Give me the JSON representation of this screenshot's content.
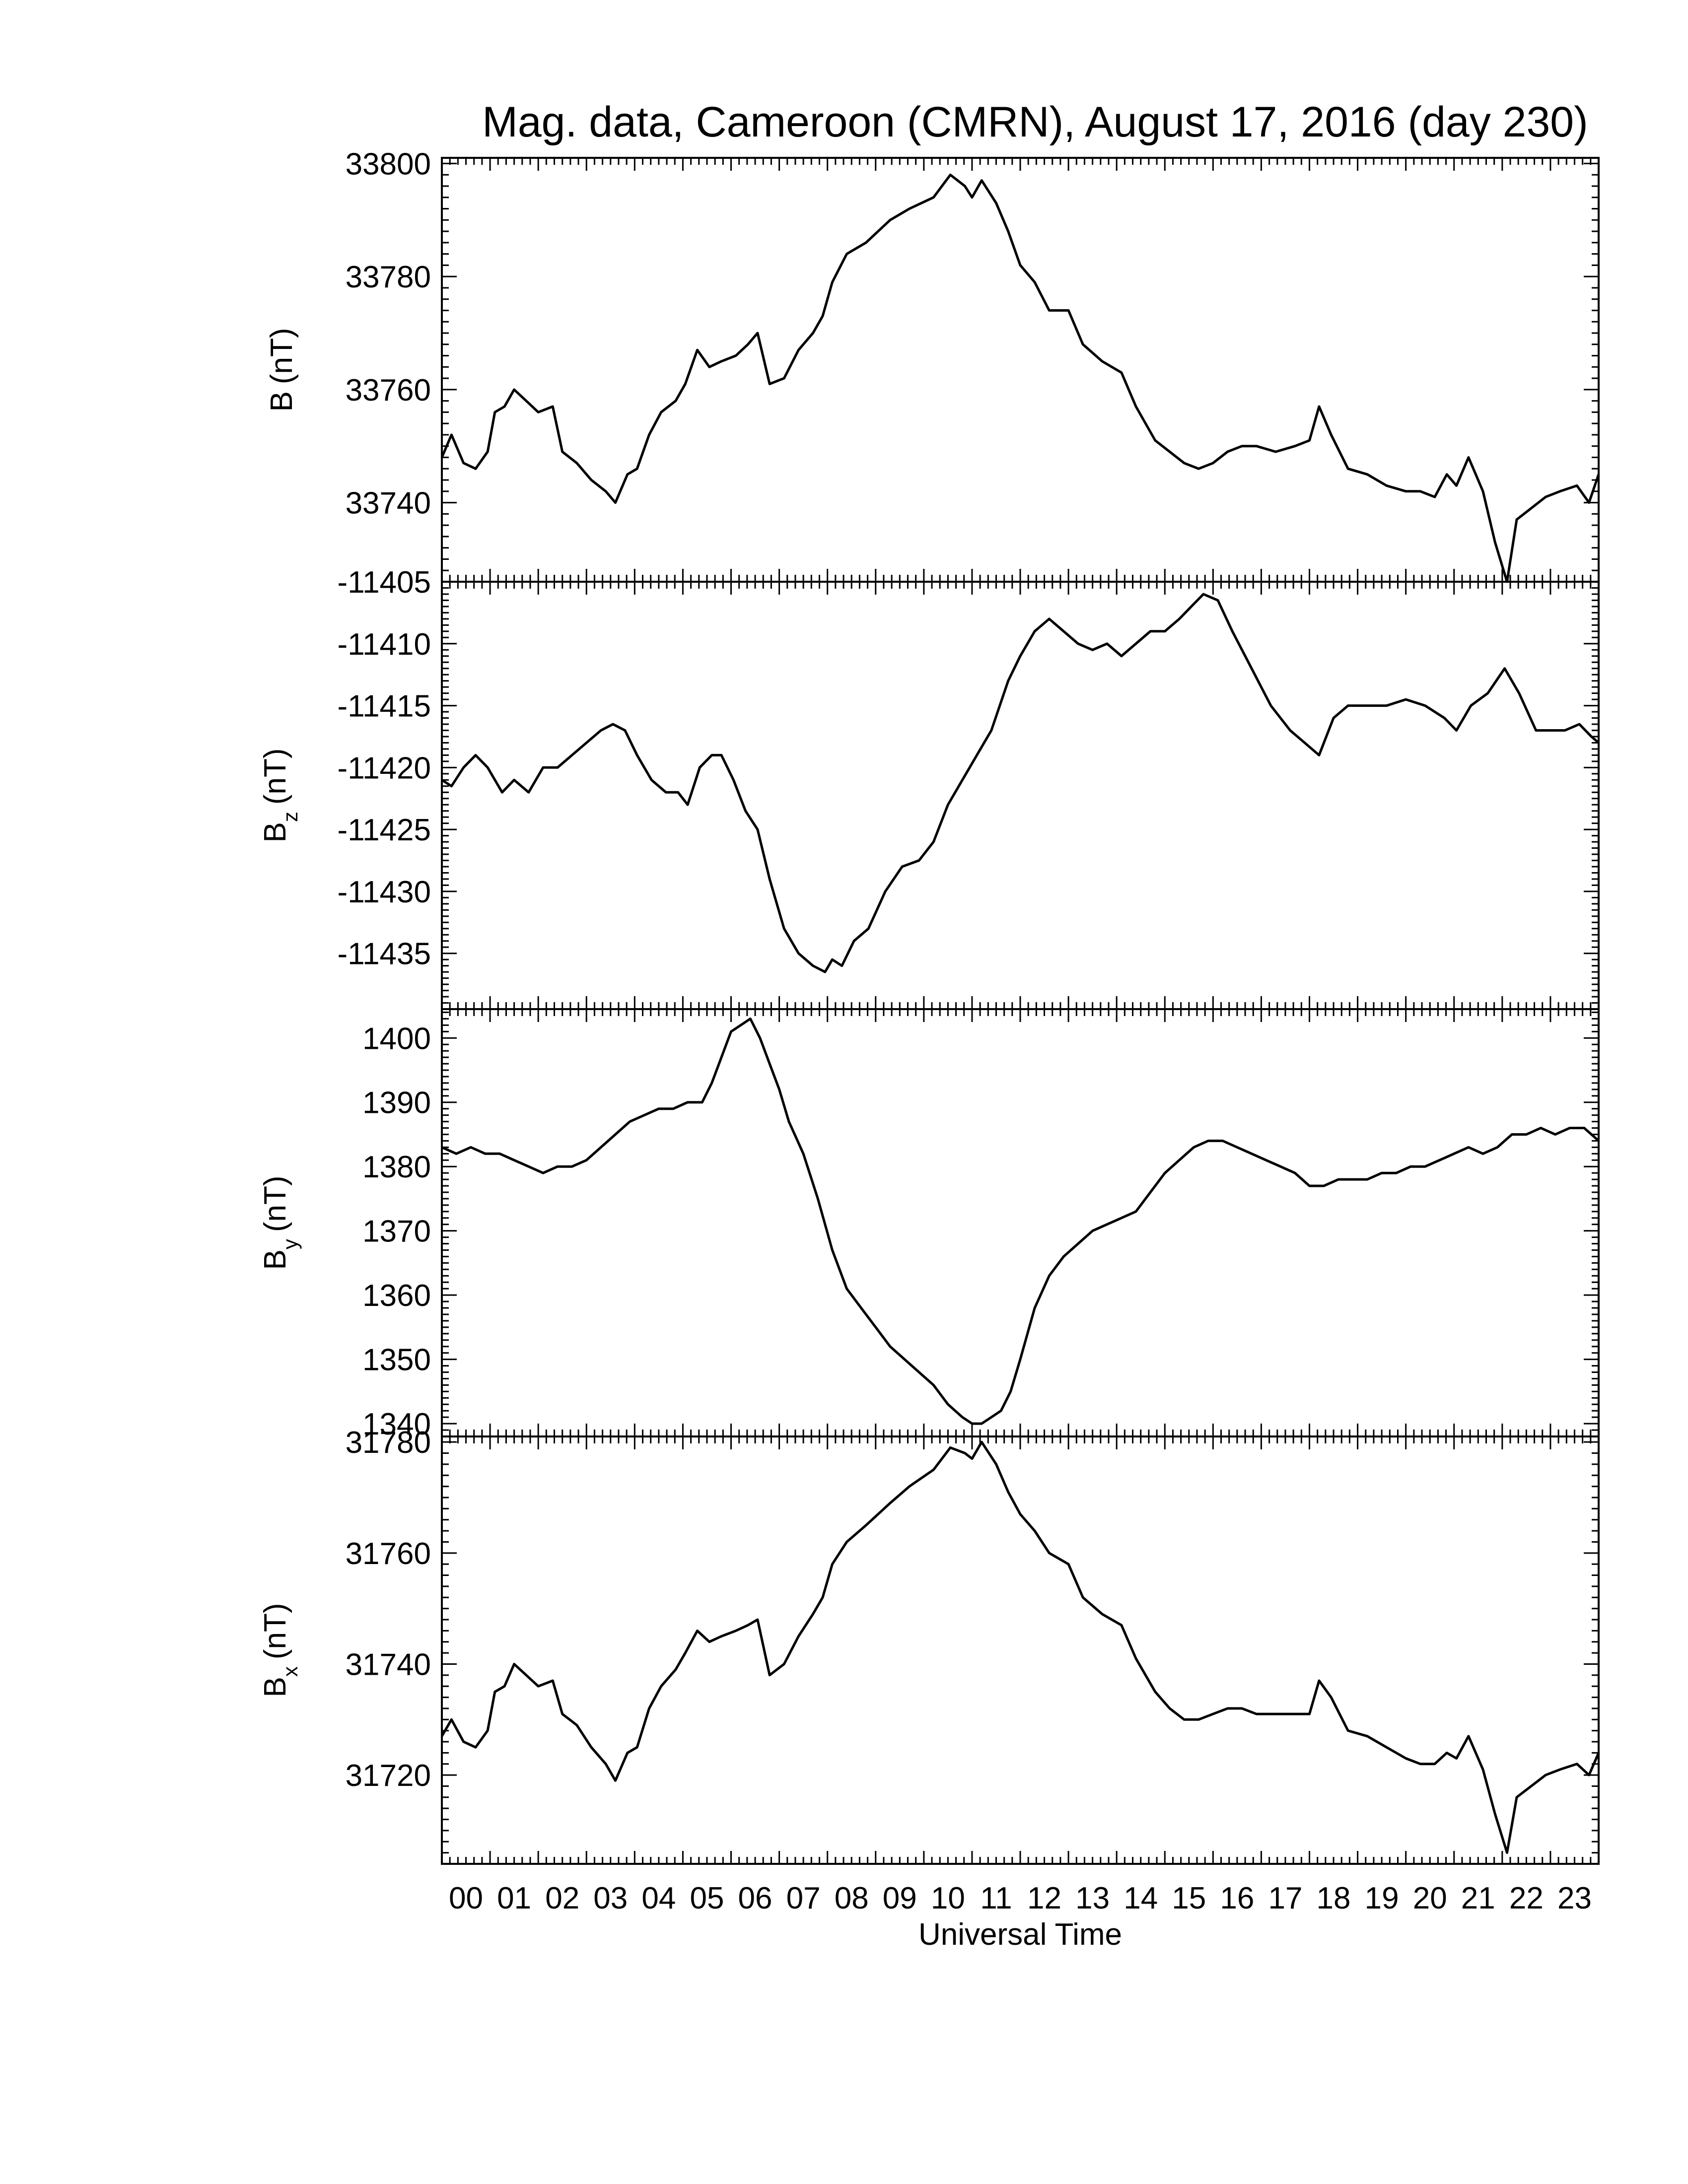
{
  "chart_data": {
    "type": "line",
    "title": "Mag. data, Cameroon (CMRN), August 17, 2016 (day 230)",
    "xlabel": "Universal Time",
    "x_tick_labels": [
      "00",
      "01",
      "02",
      "03",
      "04",
      "05",
      "06",
      "07",
      "08",
      "09",
      "10",
      "11",
      "12",
      "13",
      "14",
      "15",
      "16",
      "17",
      "18",
      "19",
      "20",
      "21",
      "22",
      "23"
    ],
    "xlim": [
      0,
      24
    ],
    "panels": [
      {
        "ylabel": "B (nT)",
        "ylabel_main": "B",
        "ylabel_sub": "",
        "ylabel_unit": "(nT)",
        "ylim": [
          33726,
          33801
        ],
        "yticks": [
          33740,
          33760,
          33780,
          33800
        ],
        "x": [
          0,
          0.2,
          0.45,
          0.7,
          0.95,
          1.1,
          1.3,
          1.5,
          1.75,
          2.0,
          2.3,
          2.5,
          2.8,
          3.1,
          3.4,
          3.6,
          3.85,
          4.05,
          4.3,
          4.55,
          4.85,
          5.05,
          5.3,
          5.55,
          5.8,
          6.1,
          6.35,
          6.55,
          6.8,
          7.1,
          7.4,
          7.7,
          7.9,
          8.1,
          8.4,
          8.8,
          9.3,
          9.7,
          10.2,
          10.55,
          10.85,
          11.0,
          11.2,
          11.5,
          11.75,
          12.0,
          12.3,
          12.6,
          13.0,
          13.3,
          13.7,
          14.1,
          14.4,
          14.8,
          15.1,
          15.4,
          15.7,
          16.0,
          16.3,
          16.6,
          16.9,
          17.3,
          17.7,
          18.0,
          18.2,
          18.45,
          18.8,
          19.2,
          19.6,
          20.0,
          20.3,
          20.6,
          20.85,
          21.05,
          21.3,
          21.6,
          21.85,
          22.1,
          22.3,
          22.6,
          22.9,
          23.2,
          23.55,
          23.8,
          24.0
        ],
        "y": [
          33748,
          33752,
          33747,
          33746,
          33749,
          33756,
          33757,
          33760,
          33758,
          33756,
          33757,
          33749,
          33747,
          33744,
          33742,
          33740,
          33745,
          33746,
          33752,
          33756,
          33758,
          33761,
          33767,
          33764,
          33765,
          33766,
          33768,
          33770,
          33761,
          33762,
          33767,
          33770,
          33773,
          33779,
          33784,
          33786,
          33790,
          33792,
          33794,
          33798,
          33796,
          33794,
          33797,
          33793,
          33788,
          33782,
          33779,
          33774,
          33774,
          33768,
          33765,
          33763,
          33757,
          33751,
          33749,
          33747,
          33746,
          33747,
          33749,
          33750,
          33750,
          33749,
          33750,
          33751,
          33757,
          33752,
          33746,
          33745,
          33743,
          33742,
          33742,
          33741,
          33745,
          33743,
          33748,
          33742,
          33733,
          33726,
          33737,
          33739,
          33741,
          33742,
          33743,
          33740,
          33745
        ]
      },
      {
        "ylabel": "Bz (nT)",
        "ylabel_main": "B",
        "ylabel_sub": "z",
        "ylabel_unit": "(nT)",
        "ylim": [
          -11439.5,
          -11405
        ],
        "yticks": [
          -11405,
          -11410,
          -11415,
          -11420,
          -11425,
          -11430,
          -11435
        ],
        "x": [
          0,
          0.2,
          0.45,
          0.7,
          0.95,
          1.25,
          1.5,
          1.8,
          2.1,
          2.4,
          2.7,
          3.0,
          3.3,
          3.55,
          3.8,
          4.05,
          4.35,
          4.65,
          4.9,
          5.1,
          5.35,
          5.6,
          5.8,
          6.05,
          6.3,
          6.55,
          6.8,
          7.1,
          7.4,
          7.7,
          7.95,
          8.1,
          8.3,
          8.55,
          8.85,
          9.2,
          9.55,
          9.9,
          10.2,
          10.5,
          10.8,
          11.1,
          11.4,
          11.75,
          12.0,
          12.3,
          12.6,
          12.9,
          13.2,
          13.5,
          13.8,
          14.1,
          14.4,
          14.7,
          15.0,
          15.3,
          15.55,
          15.8,
          16.1,
          16.4,
          16.8,
          17.2,
          17.6,
          17.9,
          18.2,
          18.5,
          18.8,
          19.2,
          19.6,
          20.0,
          20.4,
          20.8,
          21.05,
          21.35,
          21.7,
          22.05,
          22.35,
          22.7,
          23.0,
          23.3,
          23.6,
          23.85,
          24.0
        ],
        "y": [
          -11421,
          -11421.5,
          -11420,
          -11419,
          -11420,
          -11422,
          -11421,
          -11422,
          -11420,
          -11420,
          -11419,
          -11418,
          -11417,
          -11416.5,
          -11417,
          -11419,
          -11421,
          -11422,
          -11422,
          -11423,
          -11420,
          -11419,
          -11419,
          -11421,
          -11423.5,
          -11425,
          -11429,
          -11433,
          -11435,
          -11436,
          -11436.5,
          -11435.5,
          -11436,
          -11434,
          -11433,
          -11430,
          -11428,
          -11427.5,
          -11426,
          -11423,
          -11421,
          -11419,
          -11417,
          -11413,
          -11411,
          -11409,
          -11408,
          -11409,
          -11410,
          -11410.5,
          -11410,
          -11411,
          -11410,
          -11409,
          -11409,
          -11408,
          -11407,
          -11406,
          -11406.5,
          -11409,
          -11412,
          -11415,
          -11417,
          -11418,
          -11419,
          -11416,
          -11415,
          -11415,
          -11415,
          -11414.5,
          -11415,
          -11416,
          -11417,
          -11415,
          -11414,
          -11412,
          -11414,
          -11417,
          -11417,
          -11417,
          -11416.5,
          -11417.5,
          -11418
        ]
      },
      {
        "ylabel": "By (nT)",
        "ylabel_main": "B",
        "ylabel_sub": "y",
        "ylabel_unit": "(nT)",
        "ylim": [
          1338,
          1404.5
        ],
        "yticks": [
          1340,
          1350,
          1360,
          1370,
          1380,
          1390,
          1400
        ],
        "x": [
          0,
          0.3,
          0.6,
          0.9,
          1.2,
          1.5,
          1.8,
          2.1,
          2.4,
          2.7,
          3.0,
          3.3,
          3.6,
          3.9,
          4.2,
          4.5,
          4.8,
          5.1,
          5.4,
          5.6,
          5.8,
          6.0,
          6.2,
          6.4,
          6.6,
          6.8,
          7.0,
          7.2,
          7.5,
          7.8,
          8.1,
          8.4,
          8.7,
          9.0,
          9.3,
          9.6,
          9.9,
          10.2,
          10.5,
          10.8,
          11.0,
          11.2,
          11.4,
          11.6,
          11.8,
          12.0,
          12.3,
          12.6,
          12.9,
          13.2,
          13.5,
          13.8,
          14.1,
          14.4,
          14.7,
          15.0,
          15.3,
          15.6,
          15.9,
          16.2,
          16.5,
          16.8,
          17.1,
          17.4,
          17.7,
          18.0,
          18.3,
          18.6,
          18.9,
          19.2,
          19.5,
          19.8,
          20.1,
          20.4,
          20.7,
          21.0,
          21.3,
          21.6,
          21.9,
          22.2,
          22.5,
          22.8,
          23.1,
          23.4,
          23.7,
          24.0
        ],
        "y": [
          1383,
          1382,
          1383,
          1382,
          1382,
          1381,
          1380,
          1379,
          1380,
          1380,
          1381,
          1383,
          1385,
          1387,
          1388,
          1389,
          1389,
          1390,
          1390,
          1393,
          1397,
          1401,
          1402,
          1403,
          1400,
          1396,
          1392,
          1387,
          1382,
          1375,
          1367,
          1361,
          1358,
          1355,
          1352,
          1350,
          1348,
          1346,
          1343,
          1341,
          1340,
          1340,
          1341,
          1342,
          1345,
          1350,
          1358,
          1363,
          1366,
          1368,
          1370,
          1371,
          1372,
          1373,
          1376,
          1379,
          1381,
          1383,
          1384,
          1384,
          1383,
          1382,
          1381,
          1380,
          1379,
          1377,
          1377,
          1378,
          1378,
          1378,
          1379,
          1379,
          1380,
          1380,
          1381,
          1382,
          1383,
          1382,
          1383,
          1385,
          1385,
          1386,
          1385,
          1386,
          1386,
          1384
        ]
      },
      {
        "ylabel": "Bx (nT)",
        "ylabel_main": "B",
        "ylabel_sub": "x",
        "ylabel_unit": "(nT)",
        "ylim": [
          31704,
          31781
        ],
        "yticks": [
          31720,
          31740,
          31760,
          31780
        ],
        "x": [
          0,
          0.2,
          0.45,
          0.7,
          0.95,
          1.1,
          1.3,
          1.5,
          1.75,
          2.0,
          2.3,
          2.5,
          2.8,
          3.1,
          3.4,
          3.6,
          3.85,
          4.05,
          4.3,
          4.55,
          4.85,
          5.05,
          5.3,
          5.55,
          5.8,
          6.1,
          6.35,
          6.55,
          6.8,
          7.1,
          7.4,
          7.7,
          7.9,
          8.1,
          8.4,
          8.8,
          9.3,
          9.7,
          10.2,
          10.55,
          10.85,
          11.0,
          11.2,
          11.5,
          11.75,
          12.0,
          12.3,
          12.6,
          13.0,
          13.3,
          13.7,
          14.1,
          14.4,
          14.8,
          15.1,
          15.4,
          15.7,
          16.0,
          16.3,
          16.6,
          16.9,
          17.3,
          17.7,
          18.0,
          18.2,
          18.45,
          18.8,
          19.2,
          19.6,
          20.0,
          20.3,
          20.6,
          20.85,
          21.05,
          21.3,
          21.6,
          21.85,
          22.1,
          22.3,
          22.6,
          22.9,
          23.2,
          23.55,
          23.8,
          24.0
        ],
        "y": [
          31727,
          31730,
          31726,
          31725,
          31728,
          31735,
          31736,
          31740,
          31738,
          31736,
          31737,
          31731,
          31729,
          31725,
          31722,
          31719,
          31724,
          31725,
          31732,
          31736,
          31739,
          31742,
          31746,
          31744,
          31745,
          31746,
          31747,
          31748,
          31738,
          31740,
          31745,
          31749,
          31752,
          31758,
          31762,
          31765,
          31769,
          31772,
          31775,
          31779,
          31778,
          31777,
          31780,
          31776,
          31771,
          31767,
          31764,
          31760,
          31758,
          31752,
          31749,
          31747,
          31741,
          31735,
          31732,
          31730,
          31730,
          31731,
          31732,
          31732,
          31731,
          31731,
          31731,
          31731,
          31737,
          31734,
          31728,
          31727,
          31725,
          31723,
          31722,
          31722,
          31724,
          31723,
          31727,
          31721,
          31713,
          31706,
          31716,
          31718,
          31720,
          31721,
          31722,
          31720,
          31724
        ]
      }
    ]
  }
}
